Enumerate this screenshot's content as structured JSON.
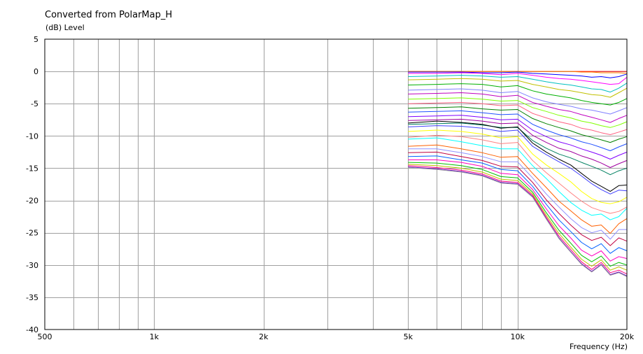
{
  "chart_data": {
    "type": "line",
    "title": "Converted from PolarMap_H",
    "ylabel": "(dB)  Level",
    "xlabel": "Frequency  (Hz)",
    "xscale": "log",
    "xlim": [
      500,
      20000
    ],
    "ylim": [
      -40,
      5
    ],
    "grid": true,
    "legend": "none",
    "x_ticks": [
      {
        "value": 500,
        "label": "500"
      },
      {
        "value": 1000,
        "label": "1k"
      },
      {
        "value": 2000,
        "label": "2k"
      },
      {
        "value": 5000,
        "label": "5k"
      },
      {
        "value": 10000,
        "label": "10k"
      },
      {
        "value": 20000,
        "label": "20k"
      }
    ],
    "y_ticks": [
      5,
      0,
      -5,
      -10,
      -15,
      -20,
      -25,
      -30,
      -35,
      -40
    ],
    "x": [
      5000,
      6000,
      7000,
      8000,
      9000,
      10000,
      11000,
      12000,
      13000,
      14000,
      15000,
      16000,
      17000,
      18000,
      19000,
      20000
    ],
    "series": [
      {
        "color": "#ff0000",
        "values": [
          0.0,
          0.0,
          0.0,
          0.0,
          0.0,
          0.0,
          0.0,
          0.0,
          0.0,
          0.0,
          0.0,
          0.0,
          0.0,
          0.0,
          0.0,
          0.0
        ]
      },
      {
        "color": "#ff8000",
        "values": [
          0.0,
          0.0,
          0.0,
          0.0,
          0.0,
          0.0,
          0.0,
          0.0,
          0.0,
          0.0,
          -0.1,
          -0.1,
          -0.2,
          -0.2,
          -0.2,
          -0.3
        ]
      },
      {
        "color": "#0000ff",
        "values": [
          -0.1,
          -0.1,
          -0.1,
          -0.2,
          -0.2,
          -0.1,
          -0.3,
          -0.4,
          -0.5,
          -0.6,
          -0.7,
          -0.9,
          -0.8,
          -1.0,
          -0.8,
          -0.4
        ]
      },
      {
        "color": "#ff00ff",
        "values": [
          -0.3,
          -0.3,
          -0.2,
          -0.3,
          -0.5,
          -0.3,
          -0.6,
          -0.9,
          -1.1,
          -1.2,
          -1.4,
          -1.6,
          -1.8,
          -2.0,
          -1.9,
          -0.9
        ]
      },
      {
        "color": "#00c0c0",
        "values": [
          -0.8,
          -0.7,
          -0.6,
          -0.7,
          -0.9,
          -0.8,
          -1.2,
          -1.6,
          -1.9,
          -2.1,
          -2.4,
          -2.7,
          -2.8,
          -3.2,
          -2.6,
          -1.8
        ]
      },
      {
        "color": "#c0c000",
        "values": [
          -1.3,
          -1.2,
          -1.1,
          -1.2,
          -1.5,
          -1.4,
          -2.0,
          -2.4,
          -2.8,
          -3.0,
          -3.3,
          -3.6,
          -3.7,
          -4.0,
          -3.3,
          -2.6
        ]
      },
      {
        "color": "#00b000",
        "values": [
          -2.1,
          -2.0,
          -1.9,
          -2.0,
          -2.4,
          -2.2,
          -3.0,
          -3.5,
          -3.8,
          -4.1,
          -4.5,
          -4.8,
          -5.0,
          -5.2,
          -4.8,
          -4.2
        ]
      },
      {
        "color": "#8080ff",
        "values": [
          -2.9,
          -2.8,
          -2.7,
          -2.9,
          -3.3,
          -3.1,
          -4.1,
          -4.7,
          -5.1,
          -5.4,
          -5.8,
          -6.0,
          -6.3,
          -6.6,
          -6.1,
          -5.6
        ]
      },
      {
        "color": "#c000c0",
        "values": [
          -3.5,
          -3.4,
          -3.3,
          -3.5,
          -3.9,
          -3.7,
          -4.8,
          -5.4,
          -5.9,
          -6.2,
          -6.7,
          -7.1,
          -7.5,
          -7.9,
          -7.3,
          -6.8
        ]
      },
      {
        "color": "#80ff00",
        "values": [
          -4.3,
          -4.2,
          -4.1,
          -4.3,
          -4.6,
          -4.5,
          -5.6,
          -6.2,
          -6.8,
          -7.2,
          -7.7,
          -8.0,
          -8.4,
          -8.7,
          -8.3,
          -7.8
        ]
      },
      {
        "color": "#ff6080",
        "values": [
          -5.0,
          -4.9,
          -4.8,
          -5.0,
          -5.3,
          -5.2,
          -6.5,
          -7.2,
          -7.8,
          -8.2,
          -8.8,
          -9.1,
          -9.5,
          -9.8,
          -9.4,
          -9.0
        ]
      },
      {
        "color": "#008000",
        "values": [
          -5.7,
          -5.6,
          -5.5,
          -5.8,
          -6.0,
          -5.9,
          -7.3,
          -8.1,
          -8.7,
          -9.2,
          -9.8,
          -10.2,
          -10.6,
          -11.0,
          -10.5,
          -10.1
        ]
      },
      {
        "color": "#2050ff",
        "values": [
          -6.3,
          -6.2,
          -6.1,
          -6.4,
          -6.7,
          -6.6,
          -8.2,
          -9.1,
          -9.8,
          -10.3,
          -10.9,
          -11.3,
          -11.8,
          -12.3,
          -11.7,
          -11.2
        ]
      },
      {
        "color": "#8000ff",
        "values": [
          -7.0,
          -6.9,
          -6.8,
          -7.1,
          -7.5,
          -7.4,
          -9.1,
          -10.1,
          -10.9,
          -11.4,
          -12.0,
          -12.5,
          -13.0,
          -13.6,
          -13.0,
          -12.5
        ]
      },
      {
        "color": "#a000a0",
        "values": [
          -7.6,
          -7.5,
          -7.4,
          -7.7,
          -8.1,
          -8.0,
          -9.9,
          -11.0,
          -11.9,
          -12.4,
          -13.1,
          -13.6,
          -14.2,
          -14.9,
          -14.3,
          -13.8
        ]
      },
      {
        "color": "#008060",
        "values": [
          -8.2,
          -8.1,
          -8.0,
          -8.3,
          -8.7,
          -8.7,
          -10.7,
          -11.9,
          -12.8,
          -13.4,
          -14.1,
          -14.7,
          -15.3,
          -16.0,
          -15.4,
          -15.0
        ]
      },
      {
        "color": "#000000",
        "values": [
          -8.0,
          -7.7,
          -7.9,
          -8.2,
          -8.8,
          -8.6,
          -11.1,
          -12.5,
          -13.6,
          -14.5,
          -15.8,
          -17.0,
          -17.8,
          -18.6,
          -17.7,
          -17.6
        ]
      },
      {
        "color": "#4040ff",
        "values": [
          -8.6,
          -8.4,
          -8.5,
          -8.8,
          -9.3,
          -9.1,
          -11.6,
          -12.9,
          -14.0,
          -15.0,
          -16.2,
          -17.4,
          -18.3,
          -19.0,
          -18.4,
          -18.5
        ]
      },
      {
        "color": "#ffff00",
        "values": [
          -9.3,
          -9.1,
          -9.3,
          -9.7,
          -10.3,
          -10.1,
          -12.8,
          -14.5,
          -15.8,
          -17.1,
          -18.6,
          -19.7,
          -20.3,
          -20.5,
          -20.2,
          -19.5
        ]
      },
      {
        "color": "#ff8080",
        "values": [
          -10.2,
          -9.9,
          -10.1,
          -10.6,
          -11.2,
          -11.0,
          -13.8,
          -15.7,
          -17.3,
          -18.8,
          -20.1,
          -21.1,
          -21.6,
          -22.0,
          -21.7,
          -21.0
        ]
      },
      {
        "color": "#00ffff",
        "values": [
          -10.5,
          -10.3,
          -10.9,
          -11.5,
          -12.0,
          -12.0,
          -14.6,
          -16.6,
          -18.6,
          -20.3,
          -21.5,
          -22.3,
          -22.1,
          -23.0,
          -22.5,
          -21.2
        ]
      },
      {
        "color": "#ff6000",
        "values": [
          -11.6,
          -11.4,
          -12.0,
          -12.6,
          -13.3,
          -13.2,
          -15.8,
          -18.0,
          -20.1,
          -21.6,
          -23.0,
          -24.0,
          -23.8,
          -25.1,
          -23.6,
          -22.8
        ]
      },
      {
        "color": "#9090ff",
        "values": [
          -12.0,
          -12.0,
          -12.6,
          -13.2,
          -14.0,
          -14.0,
          -16.5,
          -19.0,
          -21.0,
          -22.8,
          -24.2,
          -25.0,
          -24.6,
          -26.0,
          -24.5,
          -24.5
        ]
      },
      {
        "color": "#c00040",
        "values": [
          -12.6,
          -12.5,
          -13.2,
          -13.8,
          -14.7,
          -14.8,
          -17.2,
          -19.9,
          -22.0,
          -23.8,
          -25.3,
          -26.2,
          -25.7,
          -27.0,
          -25.8,
          -26.3
        ]
      },
      {
        "color": "#0060ff",
        "values": [
          -13.2,
          -13.1,
          -13.7,
          -14.2,
          -15.2,
          -15.4,
          -17.8,
          -20.6,
          -23.0,
          -24.8,
          -26.5,
          -27.5,
          -26.7,
          -28.2,
          -27.3,
          -27.8
        ]
      },
      {
        "color": "#ff00c0",
        "values": [
          -13.7,
          -13.7,
          -14.1,
          -14.7,
          -15.8,
          -16.0,
          -18.3,
          -21.3,
          -23.9,
          -25.8,
          -27.7,
          -28.6,
          -27.8,
          -29.4,
          -28.7,
          -29.0
        ]
      },
      {
        "color": "#00c000",
        "values": [
          -14.1,
          -14.2,
          -14.6,
          -15.2,
          -16.3,
          -16.5,
          -18.7,
          -21.9,
          -24.6,
          -26.6,
          -28.5,
          -29.5,
          -28.6,
          -30.2,
          -29.6,
          -30.0
        ]
      },
      {
        "color": "#c0c000",
        "values": [
          -14.4,
          -14.6,
          -15.0,
          -15.6,
          -16.7,
          -16.9,
          -19.0,
          -22.3,
          -25.1,
          -27.2,
          -29.1,
          -30.2,
          -29.2,
          -30.8,
          -30.3,
          -30.8
        ]
      },
      {
        "color": "#ff0080",
        "values": [
          -14.6,
          -14.9,
          -15.3,
          -15.9,
          -17.0,
          -17.2,
          -19.2,
          -22.6,
          -25.5,
          -27.6,
          -29.5,
          -30.7,
          -29.6,
          -31.2,
          -30.8,
          -31.4
        ]
      },
      {
        "color": "#6000c0",
        "values": [
          -14.8,
          -15.1,
          -15.5,
          -16.1,
          -17.2,
          -17.4,
          -19.4,
          -22.8,
          -25.8,
          -27.9,
          -29.8,
          -31.0,
          -29.9,
          -31.5,
          -31.1,
          -31.7
        ]
      },
      {
        "color": "#a0a0a0",
        "values": [
          -14.9,
          -15.2,
          -15.6,
          -16.2,
          -17.3,
          -17.5,
          -19.5,
          -22.9,
          -25.9,
          -28.0,
          -29.9,
          -31.1,
          -30.0,
          -31.6,
          -31.2,
          -31.8
        ]
      }
    ]
  }
}
